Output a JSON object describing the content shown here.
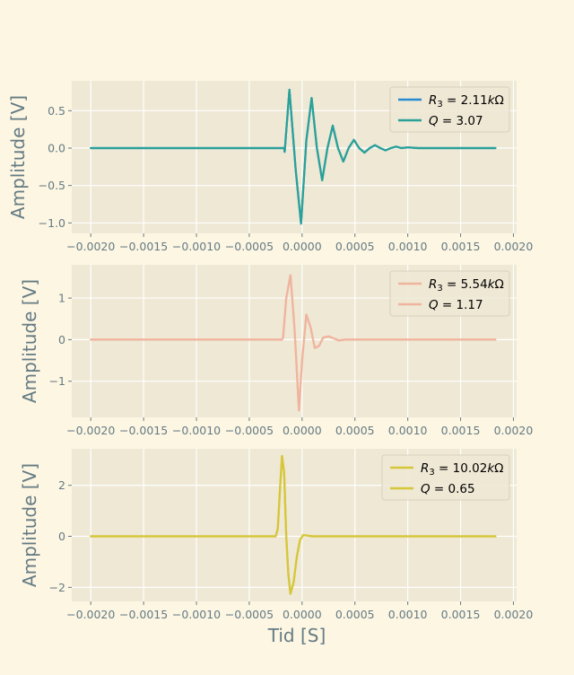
{
  "chart_data": [
    {
      "type": "line",
      "title": "",
      "xlabel": "",
      "ylabel": "Amplitude [V]",
      "xlim": [
        -0.00218,
        0.00203
      ],
      "ylim": [
        -1.14,
        0.9
      ],
      "xticks": [
        -0.002,
        -0.0015,
        -0.001,
        -0.0005,
        0.0,
        0.0005,
        0.001,
        0.0015,
        0.002
      ],
      "xtick_labels": [
        "−0.0020",
        "−0.0015",
        "−0.0010",
        "−0.0005",
        "0.0000",
        "0.0005",
        "0.0010",
        "0.0015",
        "0.0020"
      ],
      "yticks": [
        -1.0,
        -0.5,
        0.0,
        0.5
      ],
      "ytick_labels": [
        "−1.0",
        "−0.5",
        "0.0",
        "0.5"
      ],
      "grid": true,
      "legend": "top-right",
      "series": [
        {
          "name": "R_3 = 2.11kΩ",
          "name_parts": [
            "R",
            "3",
            " = 2.11",
            "k",
            "Ω"
          ],
          "color": "#268bd2",
          "x": [
            -0.002,
            -0.00017,
            -0.000165,
            -0.00012,
            -6e-05,
            -1e-05,
            4e-05,
            9e-05,
            0.00014,
            0.00019,
            0.00024,
            0.00029,
            0.00034,
            0.00039,
            0.00044,
            0.00049,
            0.00054,
            0.00059,
            0.00064,
            0.00069,
            0.00074,
            0.00079,
            0.00084,
            0.00089,
            0.00094,
            0.001,
            0.0011,
            0.00183
          ],
          "y": [
            0.0,
            0.0,
            -0.05,
            0.78,
            -0.3,
            -1.01,
            0.1,
            0.67,
            0.0,
            -0.43,
            0.0,
            0.3,
            0.0,
            -0.18,
            0.0,
            0.11,
            0.0,
            -0.06,
            0.0,
            0.04,
            0.0,
            -0.03,
            0.0,
            0.02,
            0.0,
            0.01,
            0.0,
            0.0
          ]
        },
        {
          "name": "Q = 3.07",
          "name_parts": [
            "Q",
            "",
            " = 3.07",
            "",
            ""
          ],
          "color": "#2aa198",
          "x": [
            -0.002,
            -0.00017,
            -0.000165,
            -0.00012,
            -6e-05,
            -1e-05,
            4e-05,
            9e-05,
            0.00014,
            0.00019,
            0.00024,
            0.00029,
            0.00034,
            0.00039,
            0.00044,
            0.00049,
            0.00054,
            0.00059,
            0.00064,
            0.00069,
            0.00074,
            0.00079,
            0.00084,
            0.00089,
            0.00094,
            0.001,
            0.0011,
            0.00183
          ],
          "y": [
            0.0,
            0.0,
            -0.05,
            0.78,
            -0.3,
            -1.01,
            0.1,
            0.67,
            0.0,
            -0.43,
            0.0,
            0.3,
            0.0,
            -0.18,
            0.0,
            0.11,
            0.0,
            -0.06,
            0.0,
            0.04,
            0.0,
            -0.03,
            0.0,
            0.02,
            0.0,
            0.01,
            0.0,
            0.0
          ]
        }
      ]
    },
    {
      "type": "line",
      "title": "",
      "xlabel": "",
      "ylabel": "Amplitude [V]",
      "xlim": [
        -0.00218,
        0.00203
      ],
      "ylim": [
        -1.87,
        1.8
      ],
      "xticks": [
        -0.002,
        -0.0015,
        -0.001,
        -0.0005,
        0.0,
        0.0005,
        0.001,
        0.0015,
        0.002
      ],
      "xtick_labels": [
        "−0.0020",
        "−0.0015",
        "−0.0010",
        "−0.0005",
        "0.0000",
        "0.0005",
        "0.0010",
        "0.0015",
        "0.0020"
      ],
      "yticks": [
        -1,
        0,
        1
      ],
      "ytick_labels": [
        "−1",
        "0",
        "1"
      ],
      "grid": true,
      "legend": "top-right",
      "series": [
        {
          "name": "R_3 = 5.54kΩ",
          "name_parts": [
            "R",
            "3",
            " = 5.54",
            "k",
            "Ω"
          ],
          "color": "#f0b49e",
          "x": [
            -0.002,
            -0.00019,
            -0.00018,
            -0.00015,
            -0.00011,
            -7e-05,
            -3e-05,
            0.0,
            4e-05,
            8e-05,
            0.00012,
            0.00016,
            0.0002,
            0.00025,
            0.0003,
            0.00035,
            0.0004,
            0.0005,
            0.00183
          ],
          "y": [
            0.0,
            0.0,
            0.05,
            1.0,
            1.55,
            0.2,
            -1.7,
            -0.5,
            0.6,
            0.3,
            -0.2,
            -0.15,
            0.05,
            0.08,
            0.03,
            -0.02,
            0.0,
            0.0,
            0.0
          ]
        },
        {
          "name": "Q = 1.17",
          "name_parts": [
            "Q",
            "",
            " = 1.17",
            "",
            ""
          ],
          "color": "#f0b49e",
          "x": [
            -0.002,
            -0.00019,
            -0.00018,
            -0.00015,
            -0.00011,
            -7e-05,
            -3e-05,
            0.0,
            4e-05,
            8e-05,
            0.00012,
            0.00016,
            0.0002,
            0.00025,
            0.0003,
            0.00035,
            0.0004,
            0.0005,
            0.00183
          ],
          "y": [
            0.0,
            0.0,
            0.05,
            1.0,
            1.55,
            0.2,
            -1.7,
            -0.5,
            0.6,
            0.3,
            -0.2,
            -0.15,
            0.05,
            0.08,
            0.03,
            -0.02,
            0.0,
            0.0,
            0.0
          ]
        }
      ]
    },
    {
      "type": "line",
      "title": "",
      "xlabel": "Tid [S]",
      "ylabel": "Amplitude [V]",
      "xlim": [
        -0.00218,
        0.00203
      ],
      "ylim": [
        -2.55,
        3.43
      ],
      "xticks": [
        -0.002,
        -0.0015,
        -0.001,
        -0.0005,
        0.0,
        0.0005,
        0.001,
        0.0015,
        0.002
      ],
      "xtick_labels": [
        "−0.0020",
        "−0.0015",
        "−0.0010",
        "−0.0005",
        "0.0000",
        "0.0005",
        "0.0010",
        "0.0015",
        "0.0020"
      ],
      "yticks": [
        -2,
        0,
        2
      ],
      "ytick_labels": [
        "−2",
        "0",
        "2"
      ],
      "grid": true,
      "legend": "top-right",
      "series": [
        {
          "name": "R_3 = 10.02kΩ",
          "name_parts": [
            "R",
            "3",
            " = 10.02",
            "k",
            "Ω"
          ],
          "color": "#d6c639",
          "x": [
            -0.002,
            -0.00025,
            -0.00023,
            -0.00021,
            -0.00019,
            -0.00017,
            -0.00015,
            -0.00013,
            -0.00011,
            -8e-05,
            -5e-05,
            -2e-05,
            1e-05,
            5e-05,
            0.0001,
            0.0002,
            0.00183
          ],
          "y": [
            0.0,
            0.0,
            0.3,
            1.8,
            3.15,
            2.5,
            0.0,
            -1.5,
            -2.25,
            -1.8,
            -0.8,
            -0.15,
            0.05,
            0.03,
            0.0,
            0.0,
            0.0
          ]
        },
        {
          "name": "Q = 0.65",
          "name_parts": [
            "Q",
            "",
            " = 0.65",
            "",
            ""
          ],
          "color": "#d6c639",
          "x": [
            -0.002,
            -0.00025,
            -0.00023,
            -0.00021,
            -0.00019,
            -0.00017,
            -0.00015,
            -0.00013,
            -0.00011,
            -8e-05,
            -5e-05,
            -2e-05,
            1e-05,
            5e-05,
            0.0001,
            0.0002,
            0.00183
          ],
          "y": [
            0.0,
            0.0,
            0.3,
            1.8,
            3.15,
            2.5,
            0.0,
            -1.5,
            -2.25,
            -1.8,
            -0.8,
            -0.15,
            0.05,
            0.03,
            0.0,
            0.0,
            0.0
          ]
        }
      ]
    }
  ],
  "colors": {
    "figure_background": "#fdf6e3",
    "axes_background": "#eee8d5",
    "grid": "#ffffff",
    "text": "#657b83"
  }
}
